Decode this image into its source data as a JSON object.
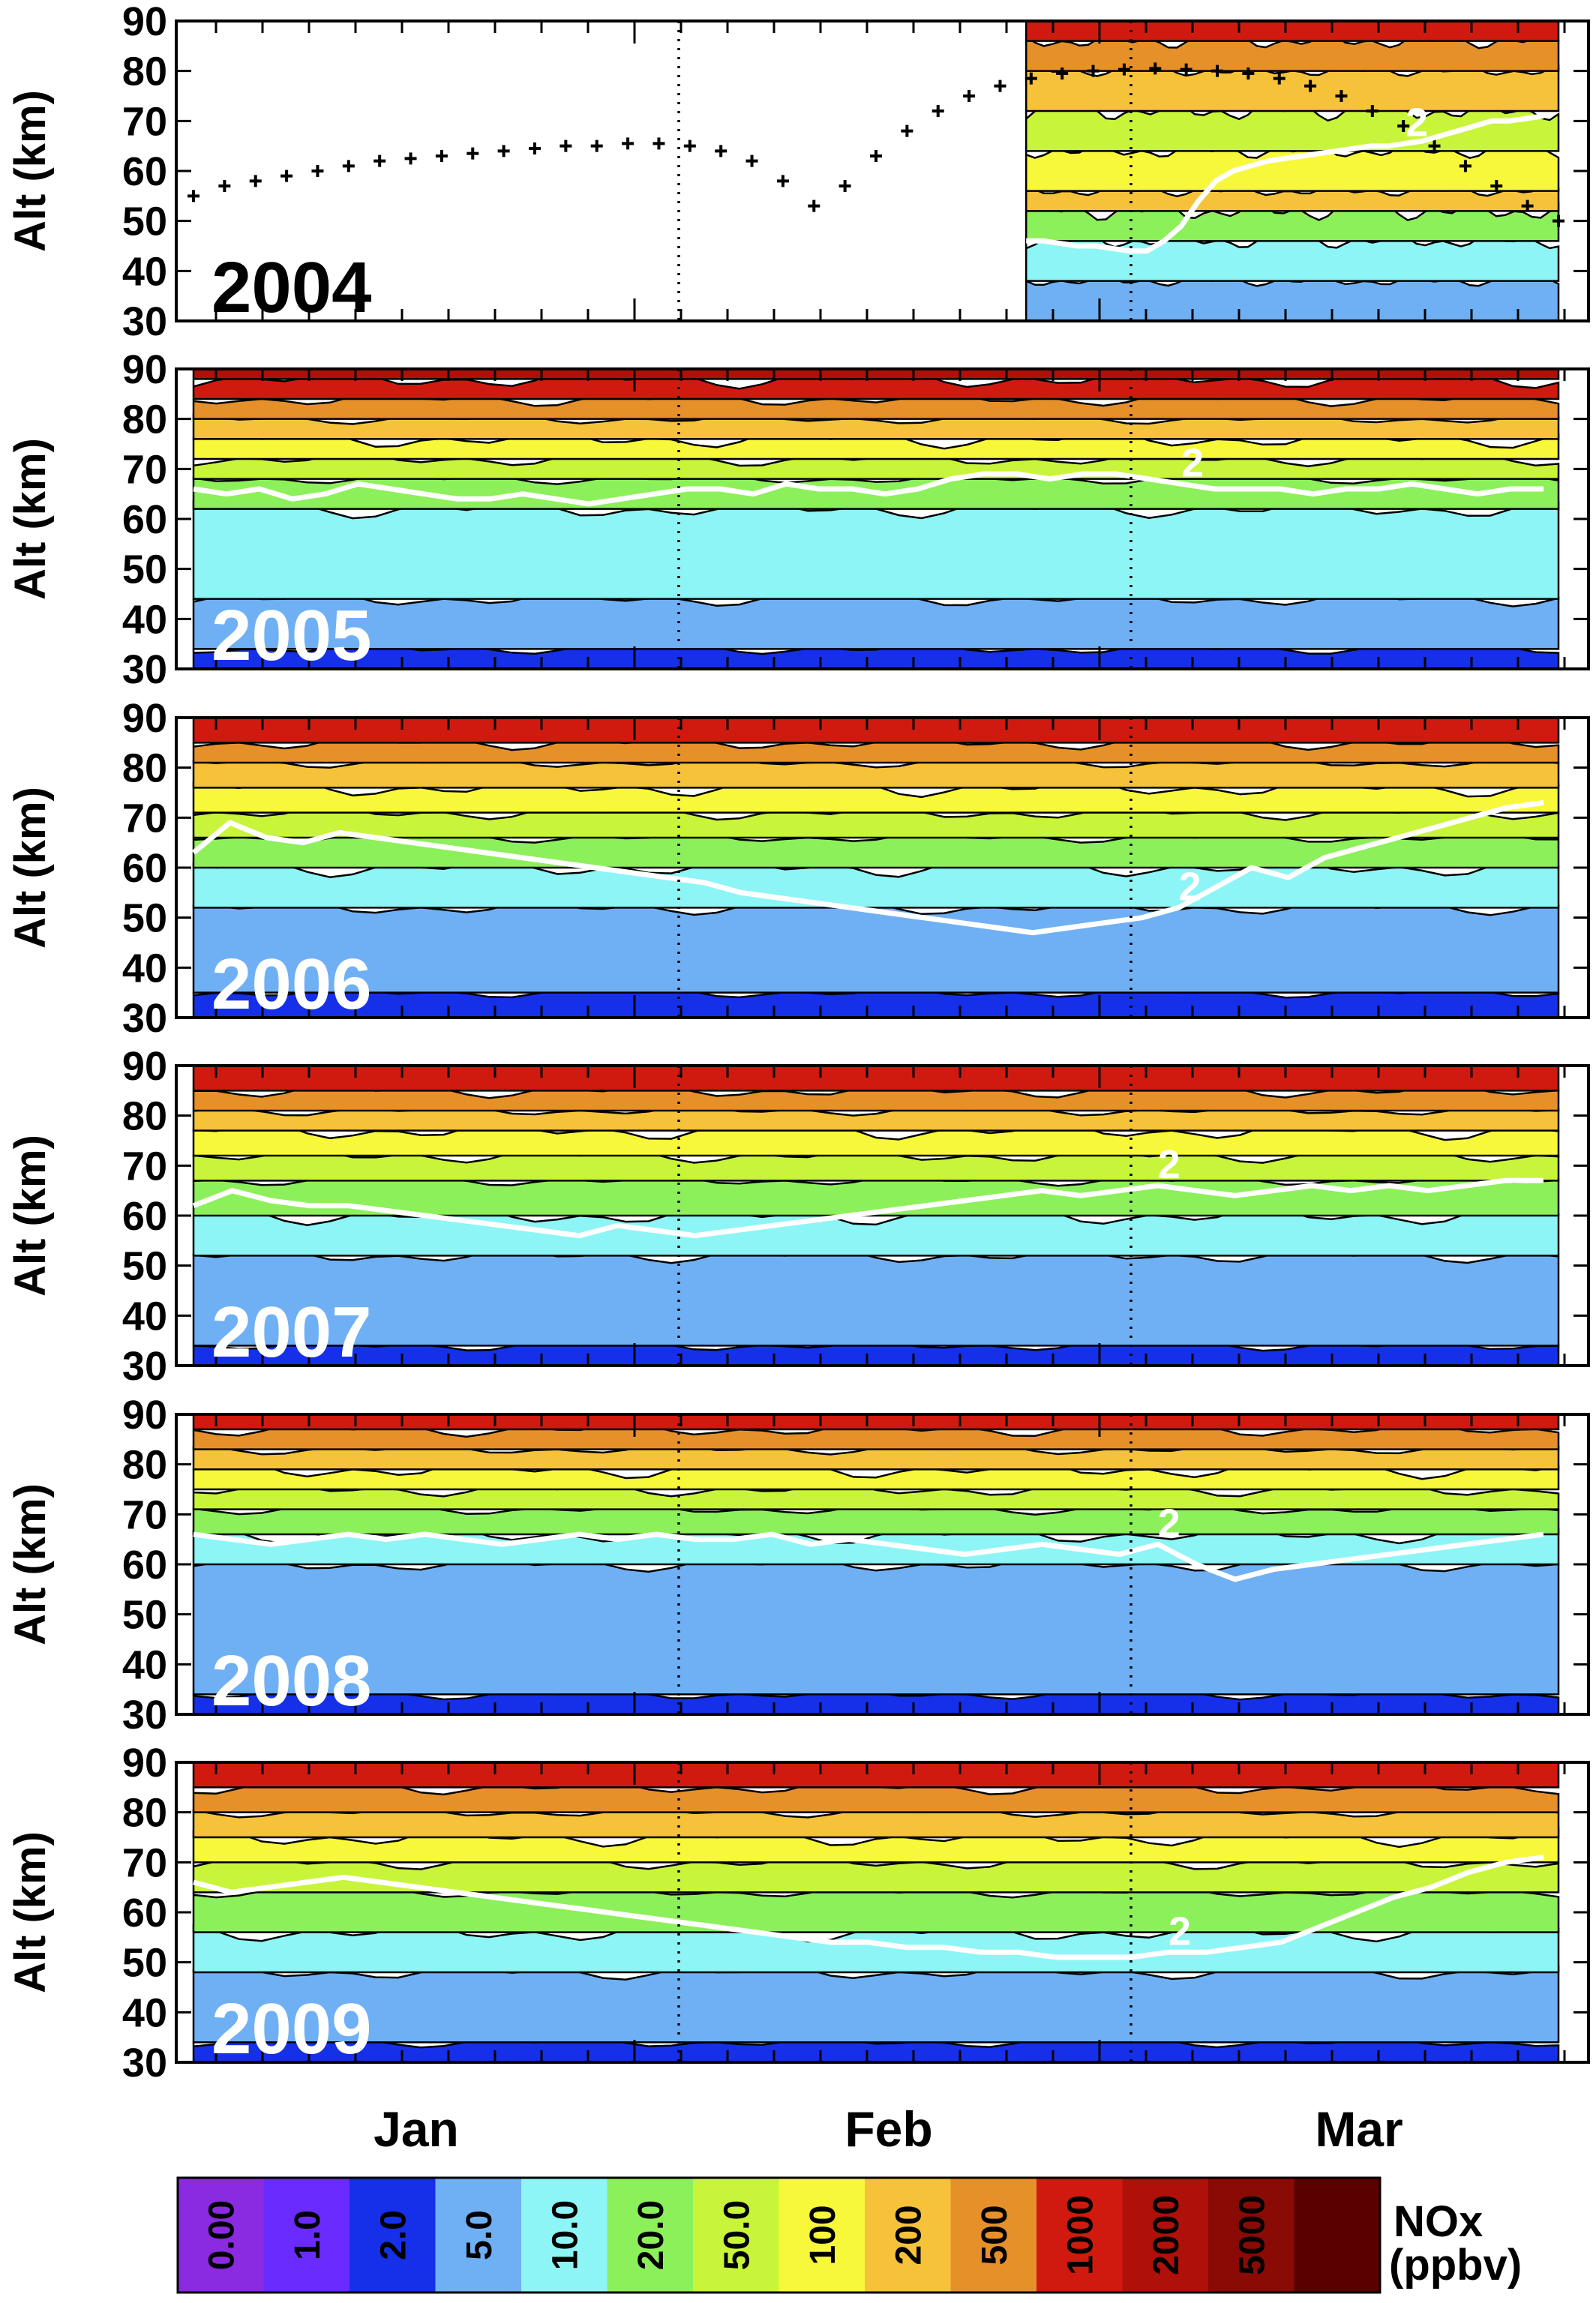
{
  "chart_data": {
    "type": "heatmap",
    "ylabel": "Alt (km)",
    "yticks": [
      30,
      40,
      50,
      60,
      70,
      80,
      90
    ],
    "ylim": [
      30,
      90
    ],
    "month_labels": [
      "Jan",
      "Feb",
      "Mar"
    ],
    "contour_label": "2",
    "colorbar": {
      "label_line1": "NOx",
      "label_line2": "(ppbv)",
      "levels": [
        "0.00",
        "1.0",
        "2.0",
        "5.0",
        "10.0",
        "20.0",
        "50.0",
        "100",
        "200",
        "500",
        "1000",
        "2000",
        "5000"
      ],
      "colors": [
        "#8a2be2",
        "#6a2bff",
        "#1530e8",
        "#6fb0f5",
        "#8df5f5",
        "#8cf05a",
        "#c8f53a",
        "#f8f83a",
        "#f5c23a",
        "#e6902a",
        "#d11a0f",
        "#b0100a",
        "#8a0a05",
        "#5a0000"
      ]
    },
    "panels": [
      {
        "year": "2004",
        "start_frac": 0.61,
        "altitude_bands": [
          {
            "top": 38,
            "color_index": 3
          },
          {
            "top": 46,
            "color_index": 4
          },
          {
            "top": 52,
            "color_index": 5
          },
          {
            "top": 56,
            "color_index": 8
          },
          {
            "top": 64,
            "color_index": 7
          },
          {
            "top": 72,
            "color_index": 6
          },
          {
            "top": 80,
            "color_index": 8
          },
          {
            "top": 86,
            "color_index": 9
          },
          {
            "top": 90,
            "color_index": 10
          }
        ],
        "stratopause_km": [
          55,
          57,
          58,
          59,
          60,
          61,
          62,
          62.5,
          63,
          63.5,
          64,
          64.5,
          65,
          65,
          65.5,
          65.5,
          65,
          64,
          62,
          58,
          53,
          57,
          63,
          68,
          72,
          75,
          77,
          78.5,
          79.5,
          80,
          80.3,
          80.5,
          80.3,
          80,
          79.5,
          78.5,
          77,
          75,
          72,
          69,
          65,
          61,
          57,
          53,
          50
        ],
        "two_contour_km": [
          46,
          46,
          45.5,
          45,
          45,
          44.5,
          44,
          44,
          46,
          49,
          54,
          58,
          60,
          61,
          62,
          62.5,
          63,
          63.5,
          64,
          64.5,
          65,
          65,
          65.5,
          66,
          67,
          68,
          69,
          70,
          70,
          70.5,
          71
        ]
      },
      {
        "year": "2005",
        "start_frac": 0.0,
        "altitude_bands": [
          {
            "top": 34,
            "color_index": 2
          },
          {
            "top": 44,
            "color_index": 3
          },
          {
            "top": 62,
            "color_index": 4
          },
          {
            "top": 68,
            "color_index": 5
          },
          {
            "top": 72,
            "color_index": 6
          },
          {
            "top": 76,
            "color_index": 7
          },
          {
            "top": 80,
            "color_index": 8
          },
          {
            "top": 84,
            "color_index": 9
          },
          {
            "top": 88,
            "color_index": 10
          },
          {
            "top": 90,
            "color_index": 11
          }
        ],
        "two_contour_km": [
          66,
          65,
          66,
          64,
          65,
          67,
          66,
          65,
          64,
          64,
          65,
          64,
          63,
          64,
          65,
          66,
          66,
          65,
          67,
          66,
          66,
          65,
          66,
          68,
          69,
          69,
          68,
          69,
          69,
          68,
          67,
          66,
          66,
          66,
          65,
          66,
          66,
          67,
          66,
          65,
          66,
          66
        ]
      },
      {
        "year": "2006",
        "start_frac": 0.0,
        "altitude_bands": [
          {
            "top": 35,
            "color_index": 2
          },
          {
            "top": 52,
            "color_index": 3
          },
          {
            "top": 60,
            "color_index": 4
          },
          {
            "top": 66,
            "color_index": 5
          },
          {
            "top": 71,
            "color_index": 6
          },
          {
            "top": 76,
            "color_index": 7
          },
          {
            "top": 81,
            "color_index": 8
          },
          {
            "top": 85,
            "color_index": 9
          },
          {
            "top": 90,
            "color_index": 10
          }
        ],
        "two_contour_km": [
          63,
          69,
          66,
          65,
          67,
          66,
          65,
          64,
          63,
          62,
          61,
          60,
          59,
          58,
          57,
          55,
          54,
          53,
          52,
          51,
          50,
          49,
          48,
          47,
          48,
          49,
          50,
          52,
          56,
          60,
          58,
          62,
          64,
          66,
          68,
          70,
          72,
          73
        ]
      },
      {
        "year": "2007",
        "start_frac": 0.0,
        "altitude_bands": [
          {
            "top": 34,
            "color_index": 2
          },
          {
            "top": 52,
            "color_index": 3
          },
          {
            "top": 60,
            "color_index": 4
          },
          {
            "top": 67,
            "color_index": 5
          },
          {
            "top": 72,
            "color_index": 6
          },
          {
            "top": 77,
            "color_index": 7
          },
          {
            "top": 81,
            "color_index": 8
          },
          {
            "top": 85,
            "color_index": 9
          },
          {
            "top": 90,
            "color_index": 10
          }
        ],
        "two_contour_km": [
          62,
          65,
          63,
          62,
          62,
          61,
          60,
          59,
          58,
          57,
          56,
          58,
          57,
          56,
          57,
          58,
          59,
          60,
          61,
          62,
          63,
          64,
          65,
          64,
          65,
          66,
          65,
          64,
          65,
          66,
          65,
          66,
          65,
          66,
          67,
          67
        ]
      },
      {
        "year": "2008",
        "start_frac": 0.0,
        "altitude_bands": [
          {
            "top": 34,
            "color_index": 2
          },
          {
            "top": 60,
            "color_index": 3
          },
          {
            "top": 66,
            "color_index": 4
          },
          {
            "top": 71,
            "color_index": 5
          },
          {
            "top": 75,
            "color_index": 6
          },
          {
            "top": 79,
            "color_index": 7
          },
          {
            "top": 83,
            "color_index": 8
          },
          {
            "top": 87,
            "color_index": 9
          },
          {
            "top": 90,
            "color_index": 10
          }
        ],
        "two_contour_km": [
          66,
          65,
          64,
          65,
          66,
          65,
          66,
          65,
          64,
          65,
          66,
          65,
          66,
          65,
          65,
          66,
          64,
          65,
          64,
          63,
          62,
          63,
          64,
          63,
          62,
          64,
          60,
          57,
          59,
          60,
          61,
          62,
          63,
          64,
          65,
          66
        ]
      },
      {
        "year": "2009",
        "start_frac": 0.0,
        "altitude_bands": [
          {
            "top": 34,
            "color_index": 2
          },
          {
            "top": 48,
            "color_index": 3
          },
          {
            "top": 56,
            "color_index": 4
          },
          {
            "top": 64,
            "color_index": 5
          },
          {
            "top": 70,
            "color_index": 6
          },
          {
            "top": 75,
            "color_index": 7
          },
          {
            "top": 80,
            "color_index": 8
          },
          {
            "top": 85,
            "color_index": 9
          },
          {
            "top": 90,
            "color_index": 10
          }
        ],
        "two_contour_km": [
          66,
          64,
          65,
          66,
          67,
          66,
          65,
          64,
          63,
          62,
          61,
          60,
          59,
          58,
          57,
          56,
          55,
          54,
          54,
          53,
          53,
          52,
          52,
          51,
          51,
          51,
          52,
          52,
          53,
          54,
          57,
          60,
          63,
          65,
          68,
          70,
          71
        ]
      }
    ]
  }
}
